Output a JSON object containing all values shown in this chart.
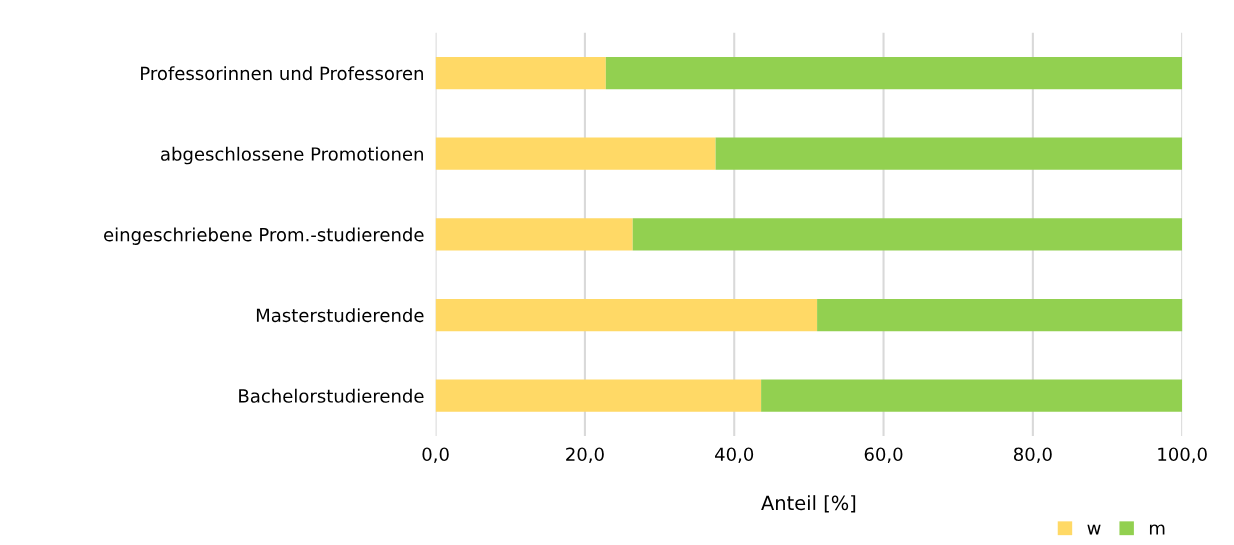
{
  "chart_data": {
    "type": "bar",
    "orientation": "horizontal",
    "stacked": true,
    "xlabel": "Anteil [%]",
    "categories": [
      "Professorinnen und Professoren",
      "abgeschlossene Promotionen",
      "eingeschriebene Prom.-studierende",
      "Masterstudierende",
      "Bachelorstudierende"
    ],
    "series": [
      {
        "name": "w",
        "color": "#ffd966",
        "values": [
          22.8,
          37.5,
          26.4,
          51.1,
          43.6
        ]
      },
      {
        "name": "m",
        "color": "#92d050",
        "values": [
          77.2,
          62.5,
          73.6,
          49.2,
          56.4
        ]
      }
    ],
    "xlim": [
      0,
      100
    ],
    "xticks": [
      {
        "value": 0,
        "label": "0,0"
      },
      {
        "value": 20,
        "label": "20,0"
      },
      {
        "value": 40,
        "label": "40,0"
      },
      {
        "value": 60,
        "label": "60,0"
      },
      {
        "value": 80,
        "label": "80,0"
      },
      {
        "value": 100,
        "label": "100,0"
      }
    ],
    "grid": "x",
    "legend": "bottom right"
  }
}
